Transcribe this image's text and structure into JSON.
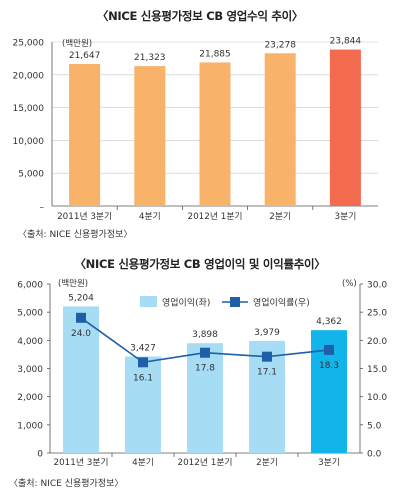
{
  "chart_data": [
    {
      "type": "bar",
      "title": "〈NICE 신용평가정보 CB 영업수익 추이〉",
      "unit_label": "(백만원)",
      "categories": [
        "2011년 3분기",
        "4분기",
        "2012년 1분기",
        "2분기",
        "3분기"
      ],
      "values": [
        21647,
        21323,
        21885,
        23278,
        23844
      ],
      "data_labels": [
        "21,647",
        "21,323",
        "21,885",
        "23,278",
        "23,844"
      ],
      "y_ticks": [
        "25,000",
        "20,000",
        "15,000",
        "10,000",
        "5,000",
        "–"
      ],
      "ylim": [
        0,
        25000
      ],
      "grid": true,
      "colors": {
        "bar": "#F8B26A",
        "highlight": "#F26B4F"
      },
      "source": "〈출처: NICE 신용평가정보〉"
    },
    {
      "type": "bar",
      "title": "〈NICE 신용평가정보 CB 영업이익 및 이익률추이〉",
      "unit_label_left": "(백만원)",
      "unit_label_right": "(%)",
      "categories": [
        "2011년 3분기",
        "4분기",
        "2012년 1분기",
        "2분기",
        "3분기"
      ],
      "series": [
        {
          "name": "영업이익(좌)",
          "kind": "bar",
          "values": [
            5204,
            3427,
            3898,
            3979,
            4362
          ],
          "labels": [
            "5,204",
            "3,427",
            "3,898",
            "3,979",
            "4,362"
          ]
        },
        {
          "name": "영업이익률(우)",
          "kind": "line",
          "values": [
            24.0,
            16.1,
            17.8,
            17.1,
            18.3
          ],
          "labels": [
            "24.0",
            "16.1",
            "17.8",
            "17.1",
            "18.3"
          ]
        }
      ],
      "y_ticks_left": [
        "6,000",
        "5,000",
        "4,000",
        "3,000",
        "2,000",
        "1,000",
        "0"
      ],
      "y_ticks_right": [
        "30.0",
        "25.0",
        "20.0",
        "15.0",
        "10.0",
        "5.0",
        "0.0"
      ],
      "ylim_left": [
        0,
        6000
      ],
      "ylim_right": [
        0,
        30
      ],
      "legend_position": "top-center",
      "colors": {
        "bar": "#A6DDF5",
        "highlight": "#12B5EA",
        "line": "#1F5FA8"
      },
      "source": "〈출처: NICE 신용평가정보〉"
    }
  ]
}
